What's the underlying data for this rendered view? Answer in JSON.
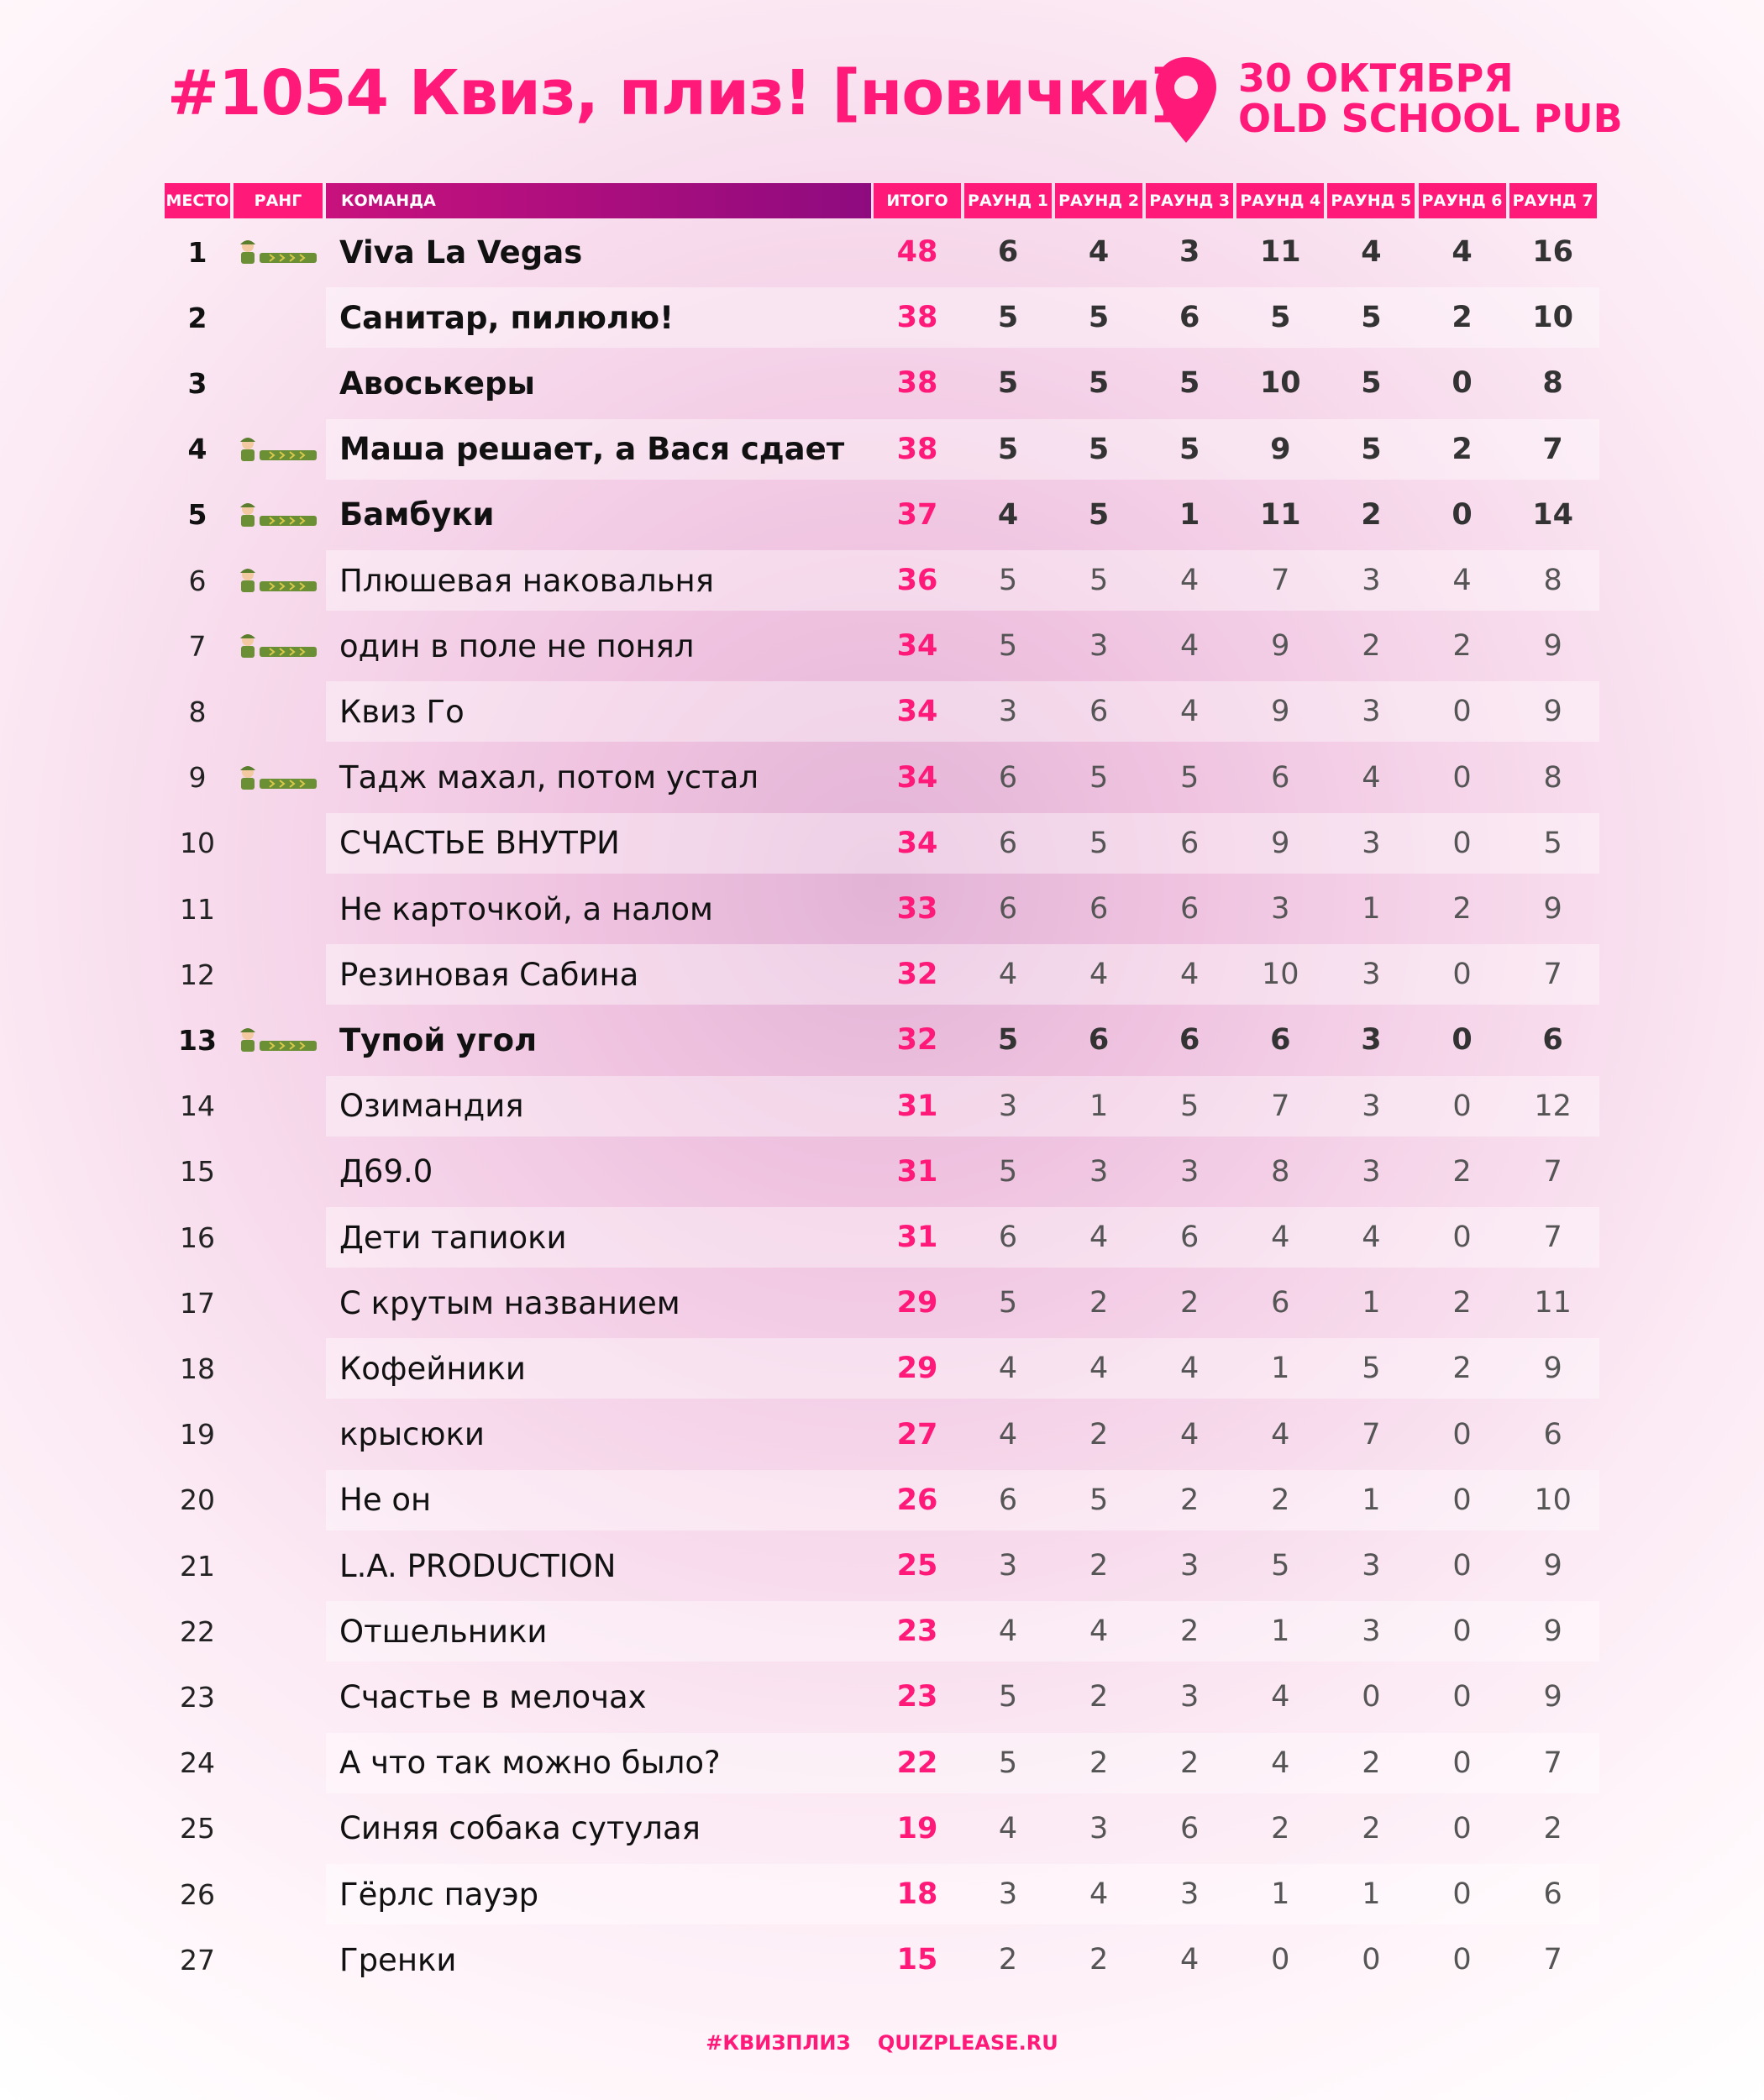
{
  "header": {
    "title": "#1054 Квиз, плиз! [новички]",
    "date": "30 ОКТЯБРЯ",
    "venue": "OLD SCHOOL PUB"
  },
  "table": {
    "columns": [
      "МЕСТО",
      "РАНГ",
      "КОМАНДА",
      "ИТОГО",
      "РАУНД 1",
      "РАУНД 2",
      "РАУНД 3",
      "РАУНД 4",
      "РАУНД 5",
      "РАУНД 6",
      "РАУНД 7"
    ],
    "rows": [
      {
        "place": 1,
        "team": "Viva La Vegas",
        "total": 48,
        "rounds": [
          6,
          4,
          3,
          11,
          4,
          4,
          16
        ],
        "badge": true,
        "bold": true
      },
      {
        "place": 2,
        "team": "Санитар, пилюлю!",
        "total": 38,
        "rounds": [
          5,
          5,
          6,
          5,
          5,
          2,
          10
        ],
        "badge": false,
        "bold": true
      },
      {
        "place": 3,
        "team": "Авоськеры",
        "total": 38,
        "rounds": [
          5,
          5,
          5,
          10,
          5,
          0,
          8
        ],
        "badge": false,
        "bold": true
      },
      {
        "place": 4,
        "team": "Маша решает, а Вася сдает",
        "total": 38,
        "rounds": [
          5,
          5,
          5,
          9,
          5,
          2,
          7
        ],
        "badge": true,
        "bold": true
      },
      {
        "place": 5,
        "team": "Бамбуки",
        "total": 37,
        "rounds": [
          4,
          5,
          1,
          11,
          2,
          0,
          14
        ],
        "badge": true,
        "bold": true
      },
      {
        "place": 6,
        "team": "Плюшевая наковальня",
        "total": 36,
        "rounds": [
          5,
          5,
          4,
          7,
          3,
          4,
          8
        ],
        "badge": true,
        "bold": false
      },
      {
        "place": 7,
        "team": "один в поле не понял",
        "total": 34,
        "rounds": [
          5,
          3,
          4,
          9,
          2,
          2,
          9
        ],
        "badge": true,
        "bold": false
      },
      {
        "place": 8,
        "team": "Квиз Го",
        "total": 34,
        "rounds": [
          3,
          6,
          4,
          9,
          3,
          0,
          9
        ],
        "badge": false,
        "bold": false
      },
      {
        "place": 9,
        "team": "Тадж махал, потом устал",
        "total": 34,
        "rounds": [
          6,
          5,
          5,
          6,
          4,
          0,
          8
        ],
        "badge": true,
        "bold": false
      },
      {
        "place": 10,
        "team": "СЧАСТЬЕ ВНУТРИ",
        "total": 34,
        "rounds": [
          6,
          5,
          6,
          9,
          3,
          0,
          5
        ],
        "badge": false,
        "bold": false
      },
      {
        "place": 11,
        "team": "Не карточкой, а налом",
        "total": 33,
        "rounds": [
          6,
          6,
          6,
          3,
          1,
          2,
          9
        ],
        "badge": false,
        "bold": false
      },
      {
        "place": 12,
        "team": "Резиновая Сабина",
        "total": 32,
        "rounds": [
          4,
          4,
          4,
          10,
          3,
          0,
          7
        ],
        "badge": false,
        "bold": false
      },
      {
        "place": 13,
        "team": "Тупой угол",
        "total": 32,
        "rounds": [
          5,
          6,
          6,
          6,
          3,
          0,
          6
        ],
        "badge": true,
        "bold": true
      },
      {
        "place": 14,
        "team": "Озимандия",
        "total": 31,
        "rounds": [
          3,
          1,
          5,
          7,
          3,
          0,
          12
        ],
        "badge": false,
        "bold": false
      },
      {
        "place": 15,
        "team": "Д69.0",
        "total": 31,
        "rounds": [
          5,
          3,
          3,
          8,
          3,
          2,
          7
        ],
        "badge": false,
        "bold": false
      },
      {
        "place": 16,
        "team": "Дети тапиоки",
        "total": 31,
        "rounds": [
          6,
          4,
          6,
          4,
          4,
          0,
          7
        ],
        "badge": false,
        "bold": false
      },
      {
        "place": 17,
        "team": "С крутым названием",
        "total": 29,
        "rounds": [
          5,
          2,
          2,
          6,
          1,
          2,
          11
        ],
        "badge": false,
        "bold": false
      },
      {
        "place": 18,
        "team": "Кофейники",
        "total": 29,
        "rounds": [
          4,
          4,
          4,
          1,
          5,
          2,
          9
        ],
        "badge": false,
        "bold": false
      },
      {
        "place": 19,
        "team": "крысюки",
        "total": 27,
        "rounds": [
          4,
          2,
          4,
          4,
          7,
          0,
          6
        ],
        "badge": false,
        "bold": false
      },
      {
        "place": 20,
        "team": "Не он",
        "total": 26,
        "rounds": [
          6,
          5,
          2,
          2,
          1,
          0,
          10
        ],
        "badge": false,
        "bold": false
      },
      {
        "place": 21,
        "team": "L.A. PRODUCTION",
        "total": 25,
        "rounds": [
          3,
          2,
          3,
          5,
          3,
          0,
          9
        ],
        "badge": false,
        "bold": false
      },
      {
        "place": 22,
        "team": "Отшельники",
        "total": 23,
        "rounds": [
          4,
          4,
          2,
          1,
          3,
          0,
          9
        ],
        "badge": false,
        "bold": false
      },
      {
        "place": 23,
        "team": "Счастье в мелочах",
        "total": 23,
        "rounds": [
          5,
          2,
          3,
          4,
          0,
          0,
          9
        ],
        "badge": false,
        "bold": false
      },
      {
        "place": 24,
        "team": "А что так можно было?",
        "total": 22,
        "rounds": [
          5,
          2,
          2,
          4,
          2,
          0,
          7
        ],
        "badge": false,
        "bold": false
      },
      {
        "place": 25,
        "team": "Синяя собака сутулая",
        "total": 19,
        "rounds": [
          4,
          3,
          6,
          2,
          2,
          0,
          2
        ],
        "badge": false,
        "bold": false
      },
      {
        "place": 26,
        "team": "Гёрлс пауэр",
        "total": 18,
        "rounds": [
          3,
          4,
          3,
          1,
          1,
          0,
          6
        ],
        "badge": false,
        "bold": false
      },
      {
        "place": 27,
        "team": "Гренки",
        "total": 15,
        "rounds": [
          2,
          2,
          4,
          0,
          0,
          0,
          7
        ],
        "badge": false,
        "bold": false
      }
    ]
  },
  "footer": {
    "hashtag": "#КВИЗПЛИЗ",
    "site": "QUIZPLEASE.RU"
  }
}
